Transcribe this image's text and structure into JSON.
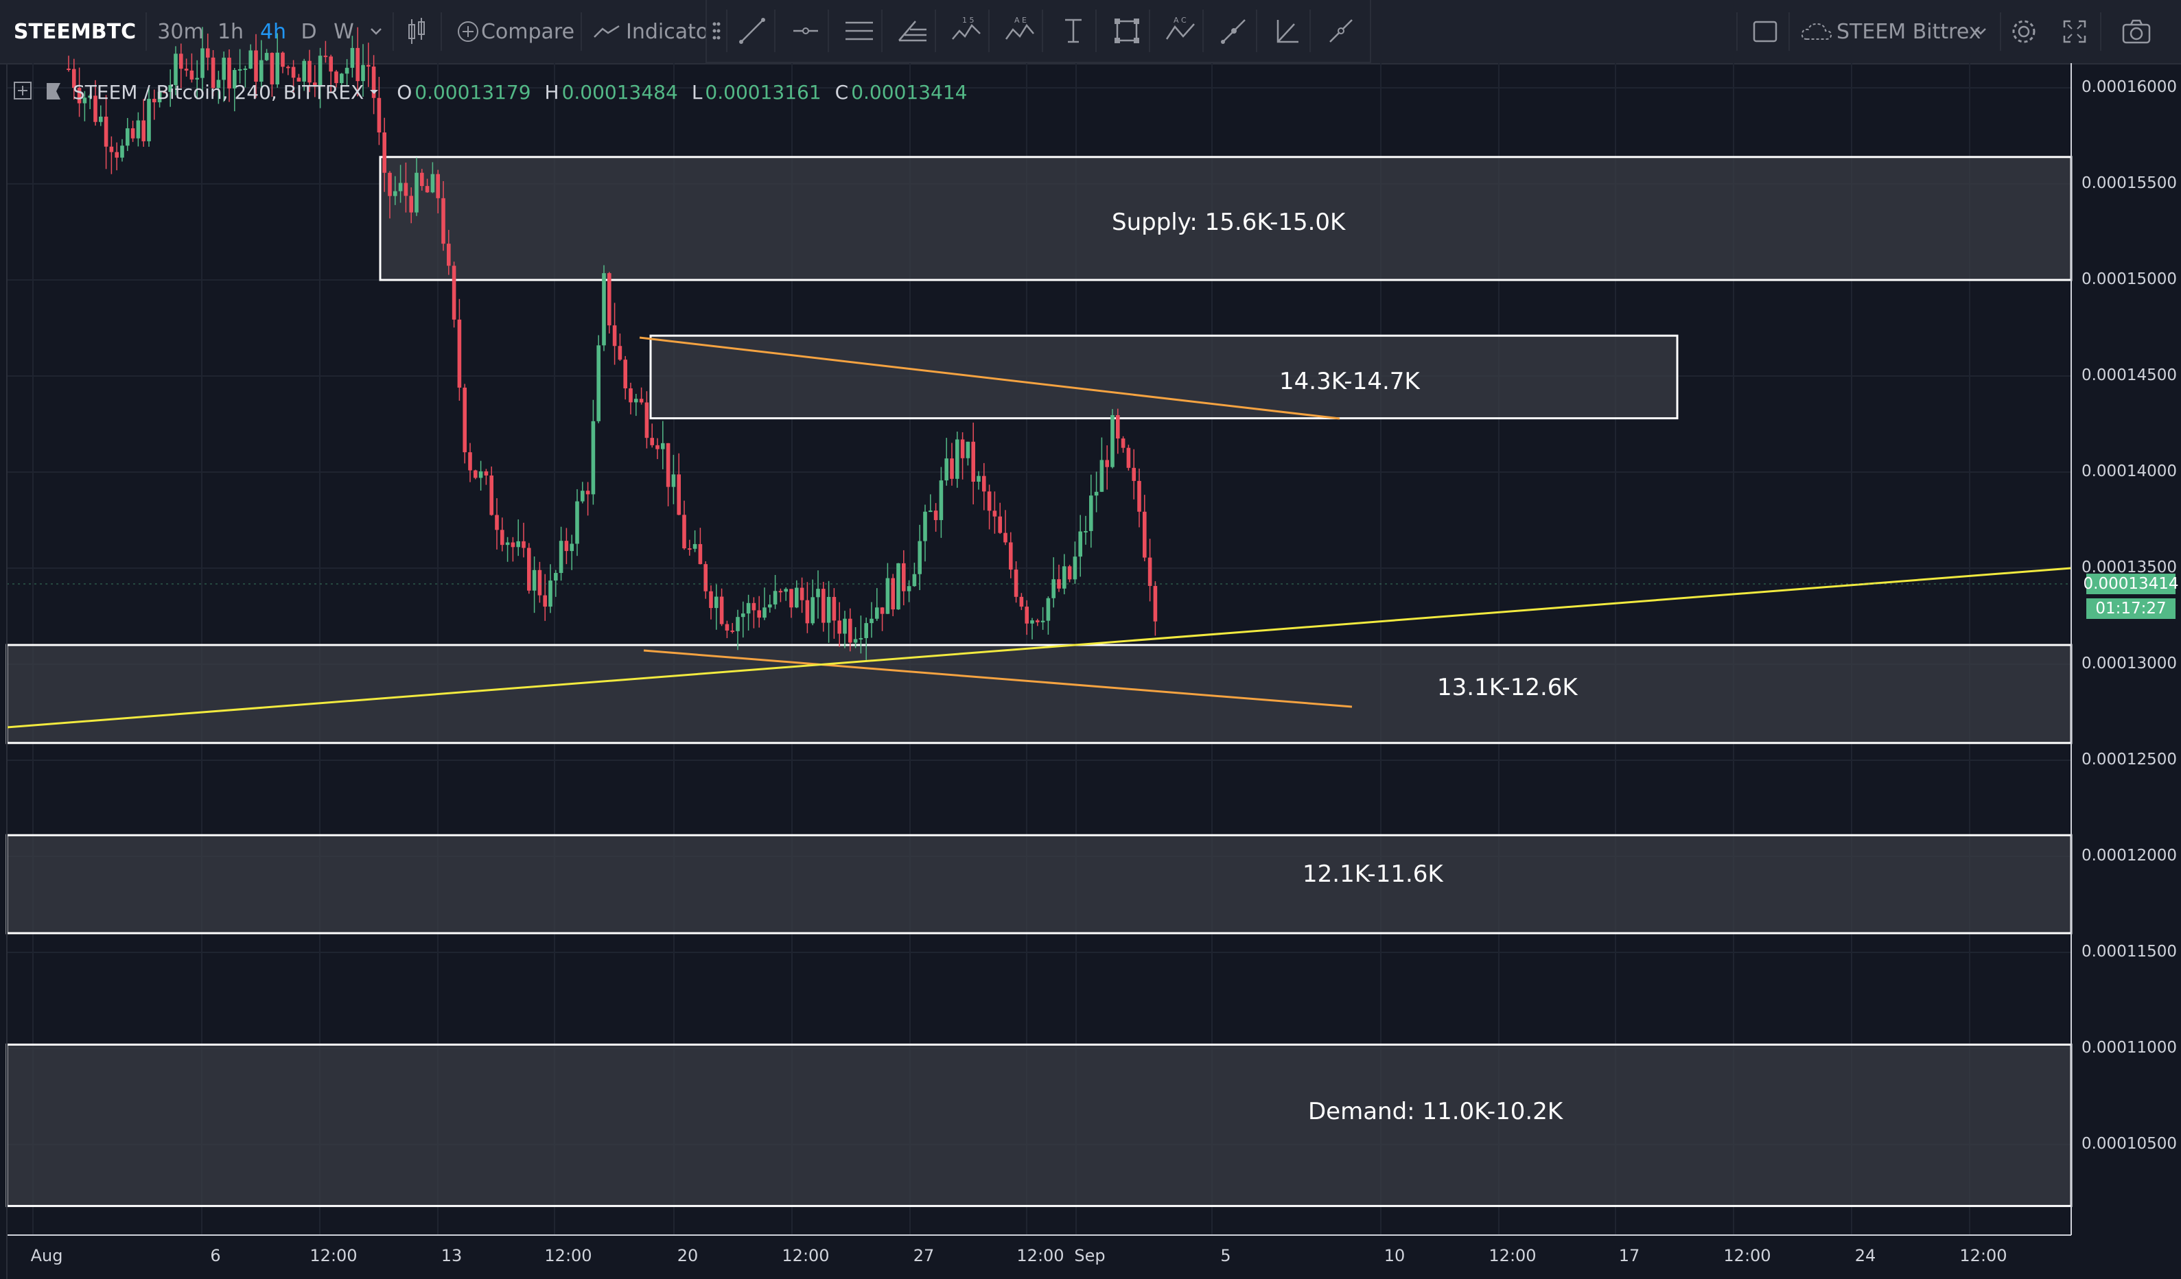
{
  "toolbar": {
    "symbol": "STEEMBTC",
    "intervals": [
      "30m",
      "1h",
      "4h",
      "D",
      "W"
    ],
    "active_interval": "4h",
    "compare_label": "Compare",
    "indicators_label": "Indicators",
    "watchlist_label": "STEEM Bittrex",
    "accent_color": "#2196f3"
  },
  "legend": {
    "title": "STEEM / Bitcoin, 240, BITTREX",
    "open_key": "O",
    "open": "0.00013179",
    "high_key": "H",
    "high": "0.00013484",
    "low_key": "L",
    "low": "0.00013161",
    "close_key": "C",
    "close": "0.00013414"
  },
  "price_axis": {
    "labels": [
      "0.00016000",
      "0.00015500",
      "0.00015000",
      "0.00014500",
      "0.00014000",
      "0.00013500",
      "0.00013000",
      "0.00012500",
      "0.00012000",
      "0.00011500",
      "0.00011000",
      "0.00010500"
    ],
    "current_price": "0.00013414",
    "countdown": "01:17:27",
    "current_color": "#53b987"
  },
  "time_axis": {
    "labels": [
      "Aug",
      "6",
      "12:00",
      "13",
      "12:00",
      "20",
      "12:00",
      "27",
      "12:00",
      "Sep",
      "5",
      "10",
      "12:00",
      "17",
      "12:00",
      "24",
      "12:00"
    ]
  },
  "zones": {
    "supply": "Supply: 15.6K-15.0K",
    "upper": "14.3K-14.7K",
    "mid": "13.1K-12.6K",
    "lower": "12.1K-11.6K",
    "demand": "Demand: 11.0K-10.2K"
  },
  "colors": {
    "up_candle": "#53b987",
    "down_candle": "#eb4d5c",
    "trendline_orange": "#f5a341",
    "trendline_yellow": "#f2ea3f",
    "zone_fill": "#3a3d45",
    "background": "#131722"
  },
  "chart_data": {
    "type": "candlestick",
    "x_range": [
      "Aug",
      "Sep"
    ],
    "y_range": [
      0.000101,
      0.000162
    ],
    "ohlc_recent": {
      "open": 0.00013179,
      "high": 0.00013484,
      "low": 0.00013161,
      "close": 0.00013414
    },
    "zones": [
      {
        "label": "Supply: 15.6K-15.0K",
        "low": 0.00015,
        "high": 0.0001564
      },
      {
        "label": "14.3K-14.7K",
        "low": 0.0001428,
        "high": 0.0001471
      },
      {
        "label": "13.1K-12.6K",
        "low": 0.0001259,
        "high": 0.000131
      },
      {
        "label": "12.1K-11.6K",
        "low": 0.000116,
        "high": 0.0001211
      },
      {
        "label": "Demand: 11.0K-10.2K",
        "low": 0.0001018,
        "high": 0.0001102
      }
    ]
  }
}
